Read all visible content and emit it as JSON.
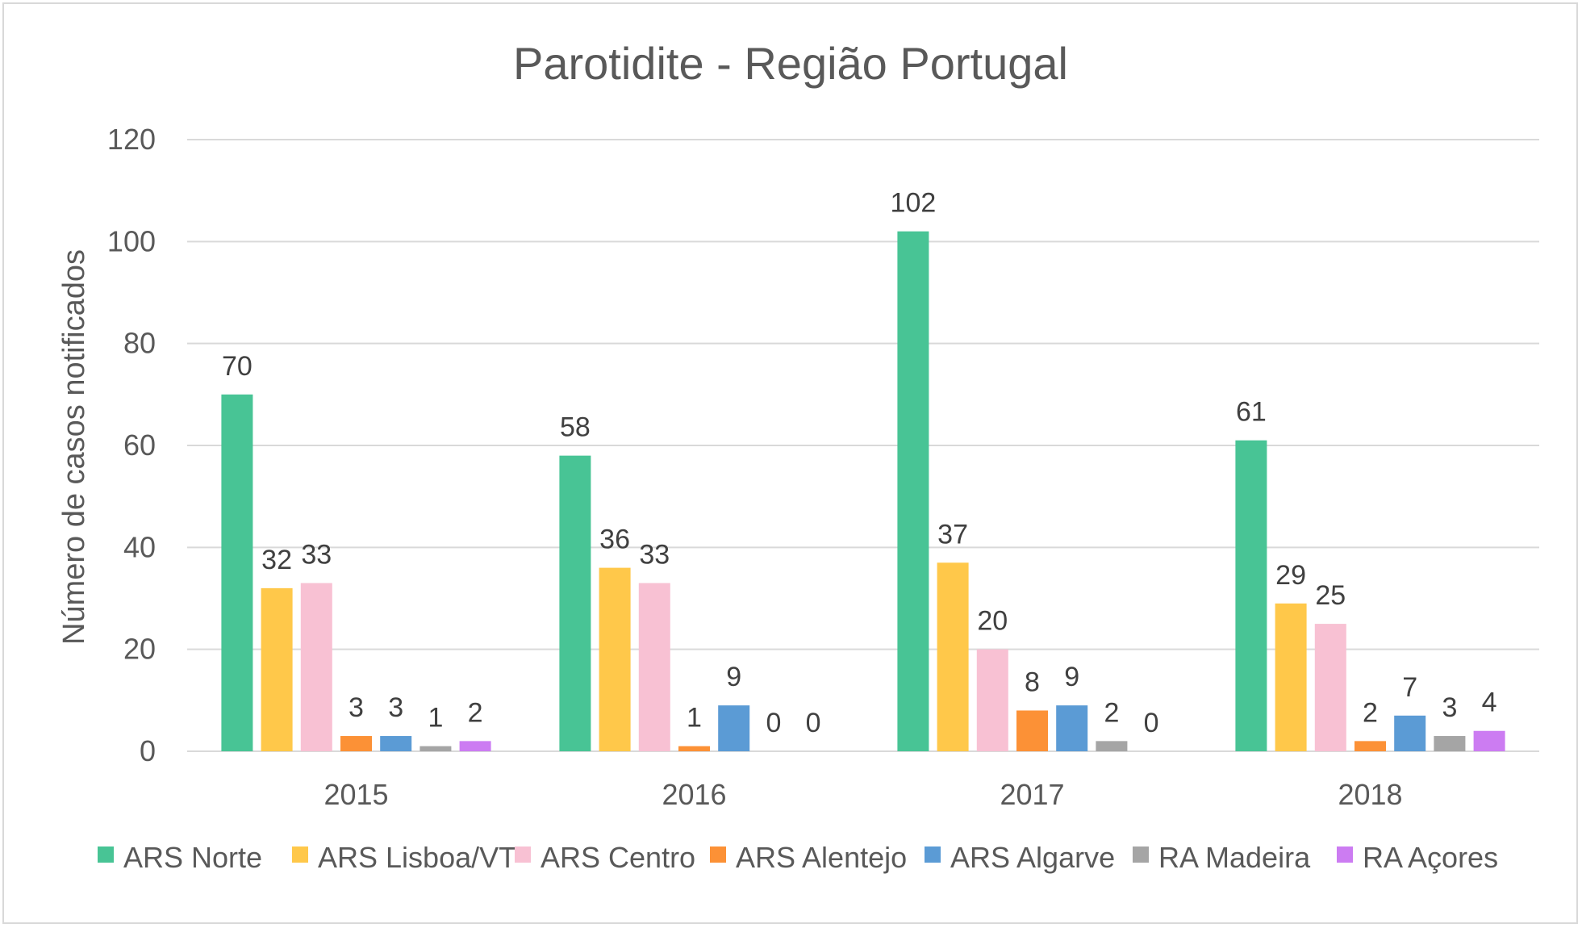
{
  "chart_data": {
    "type": "bar",
    "title": "Parotidite - Região Portugal",
    "xlabel": "",
    "ylabel": "Número de casos notificados",
    "categories": [
      "2015",
      "2016",
      "2017",
      "2018"
    ],
    "ylim": [
      0,
      120
    ],
    "yticks": [
      0,
      20,
      40,
      60,
      80,
      100,
      120
    ],
    "grid": true,
    "legend_position": "bottom",
    "series": [
      {
        "name": "ARS Norte",
        "color": "#48C495",
        "values": [
          70,
          58,
          102,
          61
        ]
      },
      {
        "name": "ARS Lisboa/VT",
        "color": "#FFC84A",
        "values": [
          32,
          36,
          37,
          29
        ]
      },
      {
        "name": "ARS Centro",
        "color": "#F8C1D3",
        "values": [
          33,
          33,
          20,
          25
        ]
      },
      {
        "name": "ARS Alentejo",
        "color": "#FC9136",
        "values": [
          3,
          1,
          8,
          2
        ]
      },
      {
        "name": "ARS Algarve",
        "color": "#5B9BD5",
        "values": [
          3,
          9,
          9,
          7
        ]
      },
      {
        "name": "RA Madeira",
        "color": "#A5A5A5",
        "values": [
          1,
          0,
          2,
          3
        ]
      },
      {
        "name": "RA Açores",
        "color": "#CC7CF2",
        "values": [
          2,
          0,
          0,
          4
        ]
      }
    ]
  }
}
